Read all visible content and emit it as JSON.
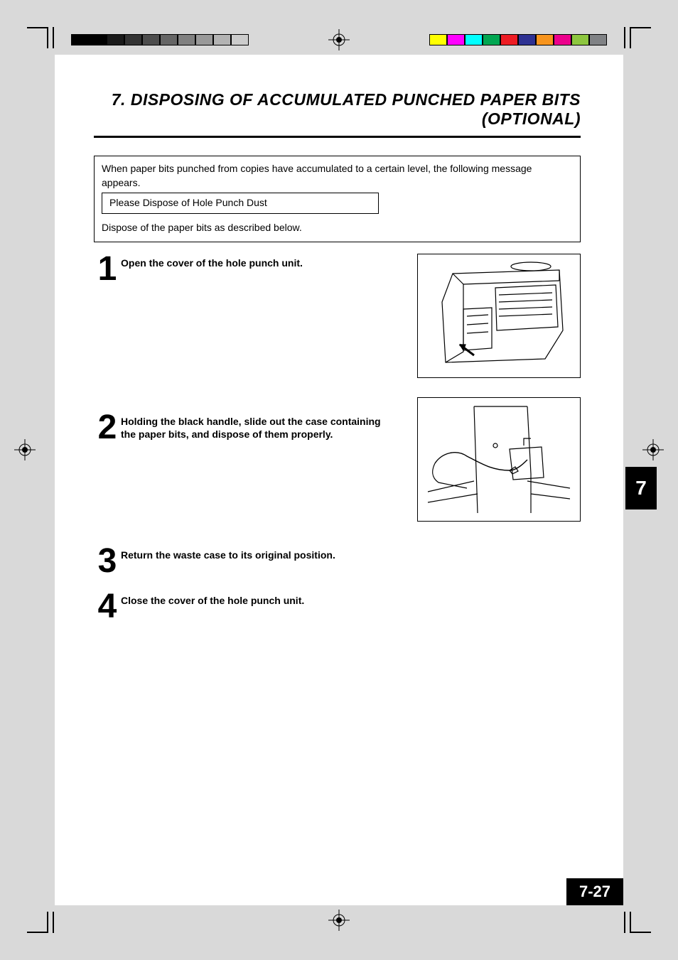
{
  "title": "7. DISPOSING OF ACCUMULATED PUNCHED PAPER BITS (OPTIONAL)",
  "info_intro": "When paper bits punched from copies have accumulated to a certain level, the following message appears.",
  "info_message": "Please Dispose of Hole Punch Dust",
  "info_followup": "Dispose of the paper bits as described below.",
  "steps": [
    {
      "n": "1",
      "text": "Open the cover of the hole punch unit."
    },
    {
      "n": "2",
      "text": "Holding the black handle, slide out the case containing the paper bits, and dispose of them properly."
    },
    {
      "n": "3",
      "text": "Return the waste case to its original position."
    },
    {
      "n": "4",
      "text": "Close the cover of the hole punch unit."
    }
  ],
  "chapter_tab": "7",
  "page_number": "7-27",
  "greys": [
    "#000000",
    "#000000",
    "#1a1a1a",
    "#333333",
    "#4d4d4d",
    "#666666",
    "#808080",
    "#999999",
    "#b3b3b3",
    "#cccccc"
  ],
  "colors": [
    "#ffff00",
    "#ff00ff",
    "#00ffff",
    "#00a651",
    "#ed1c24",
    "#2e3192",
    "#f7941d",
    "#ec008c",
    "#8dc63f",
    "#808285"
  ],
  "background": "#d9d9d9",
  "page_bg": "#ffffff",
  "text_color": "#000000",
  "title_fontsize": 23,
  "step_num_fontsize": 48,
  "step_text_fontsize": 14
}
